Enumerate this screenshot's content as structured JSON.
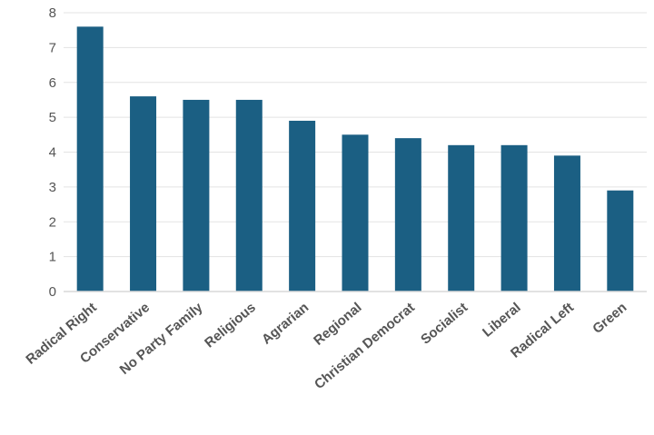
{
  "chart_data": {
    "type": "bar",
    "title": "",
    "xlabel": "",
    "ylabel": "",
    "categories": [
      "Radical Right",
      "Conservative",
      "No Party Family",
      "Religious",
      "Agrarian",
      "Regional",
      "Christian Democrat",
      "Socialist",
      "Liberal",
      "Radical Left",
      "Green"
    ],
    "values": [
      7.6,
      5.6,
      5.5,
      5.5,
      4.9,
      4.5,
      4.4,
      4.2,
      4.2,
      3.9,
      2.9
    ],
    "ylim": [
      0,
      8
    ],
    "yticks": [
      0,
      1,
      2,
      3,
      4,
      5,
      6,
      7,
      8
    ],
    "grid": true,
    "legend": "none",
    "bar_color": "#1b5f83"
  }
}
